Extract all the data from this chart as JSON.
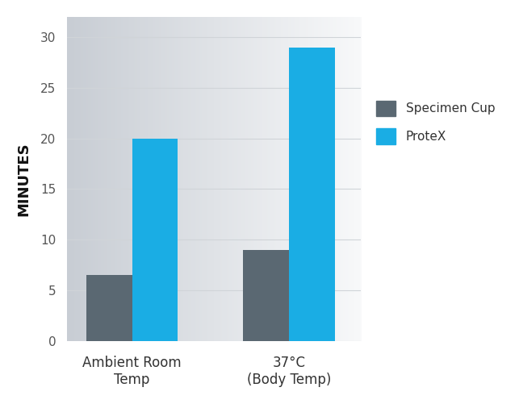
{
  "categories": [
    "Ambient Room\nTemp",
    "37°C\n(Body Temp)"
  ],
  "specimen_cup_values": [
    6.5,
    9.0
  ],
  "protex_values": [
    20.0,
    29.0
  ],
  "specimen_cup_color": "#5a6872",
  "protex_color": "#1aade4",
  "ylabel": "MINUTES",
  "ylim": [
    0,
    32
  ],
  "yticks": [
    0,
    5,
    10,
    15,
    20,
    25,
    30
  ],
  "legend_labels": [
    "Specimen Cup",
    "ProteX"
  ],
  "bar_width": 0.35,
  "group_positions": [
    0.55,
    1.75
  ],
  "xlim": [
    0.05,
    2.3
  ],
  "ylabel_fontsize": 13,
  "tick_fontsize": 11,
  "legend_fontsize": 11,
  "grid_color": "#d0d4d8",
  "grid_linewidth": 0.8,
  "fig_bg": "#ffffff",
  "plot_bg_left": "#c8cdd4",
  "plot_bg_right": "#f8f9fa"
}
